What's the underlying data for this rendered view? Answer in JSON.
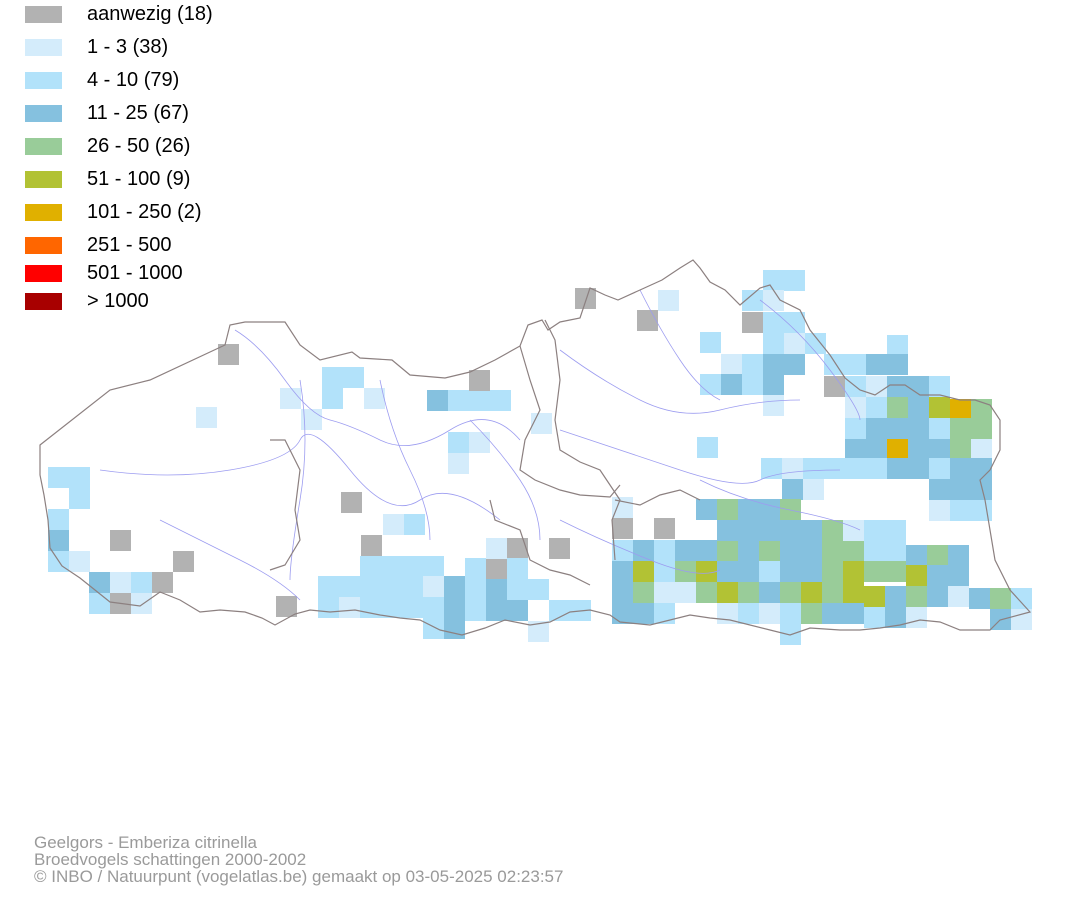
{
  "legend": {
    "items": [
      {
        "label": "aanwezig (18)",
        "color": "#b2b2b2"
      },
      {
        "label": "1 - 3 (38)",
        "color": "#d4ecfb"
      },
      {
        "label": "4 - 10 (79)",
        "color": "#b2e2fa"
      },
      {
        "label": "11 - 25 (67)",
        "color": "#85c1df"
      },
      {
        "label": "26 - 50 (26)",
        "color": "#99cc99"
      },
      {
        "label": "51 - 100 (9)",
        "color": "#b2c234"
      },
      {
        "label": "101 - 250 (2)",
        "color": "#e0b000"
      },
      {
        "label": "251 - 500",
        "color": "#ff6600"
      },
      {
        "label": "501 - 1000",
        "color": "#ff0000"
      },
      {
        "label": "> 1000",
        "color": "#a80000"
      }
    ]
  },
  "credits": {
    "line1": "Geelgors - Emberiza citrinella",
    "line2": "Broedvogels schattingen 2000-2002",
    "line3": "© INBO / Natuurpunt (vogelatlas.be) gemaakt op 03-05-2025 02:23:57"
  }
}
